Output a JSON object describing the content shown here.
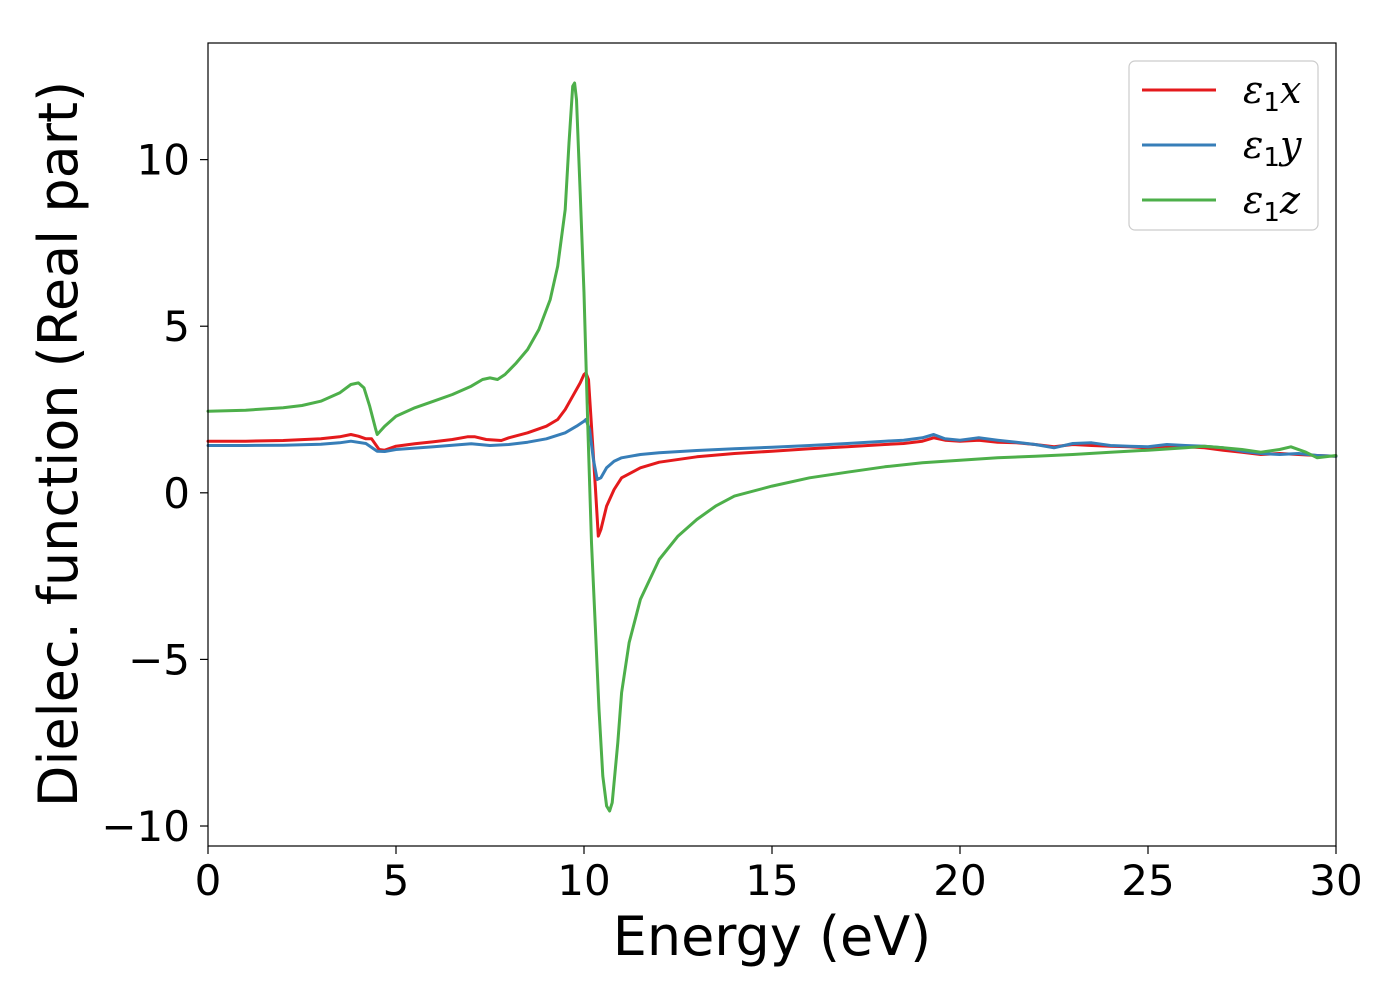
{
  "chart_data": {
    "type": "line",
    "xlabel": "Energy (eV)",
    "ylabel": "Dielec. function (Real part)",
    "xlim": [
      0,
      30
    ],
    "ylim": [
      -10.6,
      13.5
    ],
    "xticks": [
      0,
      5,
      10,
      15,
      20,
      25,
      30
    ],
    "xtick_labels": [
      "0",
      "5",
      "10",
      "15",
      "20",
      "25",
      "30"
    ],
    "yticks": [
      -10,
      -5,
      0,
      5,
      10
    ],
    "ytick_labels": [
      "−10",
      "−5",
      "0",
      "5",
      "10"
    ],
    "grid": false,
    "legend_position": "top-right",
    "series": [
      {
        "name": "ε1x",
        "legend_symbol": "ε",
        "legend_sub": "1",
        "legend_var": "x",
        "color": "#e41a1c",
        "points": [
          [
            0,
            1.55
          ],
          [
            1,
            1.55
          ],
          [
            2,
            1.57
          ],
          [
            3,
            1.62
          ],
          [
            3.5,
            1.68
          ],
          [
            3.8,
            1.75
          ],
          [
            4.0,
            1.7
          ],
          [
            4.2,
            1.62
          ],
          [
            4.35,
            1.62
          ],
          [
            4.55,
            1.3
          ],
          [
            4.7,
            1.28
          ],
          [
            5.0,
            1.4
          ],
          [
            5.5,
            1.47
          ],
          [
            6.0,
            1.53
          ],
          [
            6.5,
            1.6
          ],
          [
            6.9,
            1.68
          ],
          [
            7.1,
            1.68
          ],
          [
            7.4,
            1.6
          ],
          [
            7.8,
            1.57
          ],
          [
            8.0,
            1.65
          ],
          [
            8.5,
            1.8
          ],
          [
            9.0,
            2.0
          ],
          [
            9.3,
            2.2
          ],
          [
            9.5,
            2.5
          ],
          [
            9.7,
            2.9
          ],
          [
            9.9,
            3.3
          ],
          [
            10.0,
            3.55
          ],
          [
            10.05,
            3.6
          ],
          [
            10.12,
            3.4
          ],
          [
            10.2,
            2.0
          ],
          [
            10.3,
            0.2
          ],
          [
            10.38,
            -1.3
          ],
          [
            10.45,
            -1.1
          ],
          [
            10.6,
            -0.4
          ],
          [
            10.8,
            0.1
          ],
          [
            11.0,
            0.45
          ],
          [
            11.5,
            0.75
          ],
          [
            12.0,
            0.92
          ],
          [
            13.0,
            1.08
          ],
          [
            14.0,
            1.18
          ],
          [
            15.0,
            1.25
          ],
          [
            16.0,
            1.32
          ],
          [
            17.0,
            1.38
          ],
          [
            18.0,
            1.45
          ],
          [
            18.5,
            1.48
          ],
          [
            19.0,
            1.55
          ],
          [
            19.3,
            1.65
          ],
          [
            19.6,
            1.58
          ],
          [
            20.0,
            1.55
          ],
          [
            20.5,
            1.58
          ],
          [
            21.0,
            1.52
          ],
          [
            21.5,
            1.5
          ],
          [
            22.0,
            1.45
          ],
          [
            22.5,
            1.38
          ],
          [
            23.0,
            1.45
          ],
          [
            23.5,
            1.42
          ],
          [
            24.0,
            1.4
          ],
          [
            24.5,
            1.38
          ],
          [
            25.0,
            1.35
          ],
          [
            25.5,
            1.4
          ],
          [
            26.0,
            1.38
          ],
          [
            26.5,
            1.35
          ],
          [
            27.0,
            1.28
          ],
          [
            27.5,
            1.22
          ],
          [
            28.0,
            1.15
          ],
          [
            28.5,
            1.18
          ],
          [
            29.0,
            1.15
          ],
          [
            29.5,
            1.12
          ],
          [
            30.0,
            1.1
          ]
        ]
      },
      {
        "name": "ε1y",
        "legend_symbol": "ε",
        "legend_sub": "1",
        "legend_var": "y",
        "color": "#377eb8",
        "points": [
          [
            0,
            1.42
          ],
          [
            1,
            1.42
          ],
          [
            2,
            1.43
          ],
          [
            3,
            1.46
          ],
          [
            3.5,
            1.5
          ],
          [
            3.8,
            1.55
          ],
          [
            4.2,
            1.48
          ],
          [
            4.5,
            1.25
          ],
          [
            4.7,
            1.24
          ],
          [
            5.0,
            1.3
          ],
          [
            6.0,
            1.38
          ],
          [
            7.0,
            1.47
          ],
          [
            7.5,
            1.42
          ],
          [
            8.0,
            1.45
          ],
          [
            8.5,
            1.52
          ],
          [
            9.0,
            1.62
          ],
          [
            9.5,
            1.8
          ],
          [
            9.8,
            2.0
          ],
          [
            10.0,
            2.15
          ],
          [
            10.05,
            2.2
          ],
          [
            10.15,
            1.9
          ],
          [
            10.25,
            1.0
          ],
          [
            10.35,
            0.4
          ],
          [
            10.45,
            0.45
          ],
          [
            10.6,
            0.75
          ],
          [
            10.8,
            0.95
          ],
          [
            11.0,
            1.05
          ],
          [
            11.5,
            1.15
          ],
          [
            12.0,
            1.2
          ],
          [
            13.0,
            1.27
          ],
          [
            14.0,
            1.32
          ],
          [
            15.0,
            1.37
          ],
          [
            16.0,
            1.42
          ],
          [
            17.0,
            1.48
          ],
          [
            18.0,
            1.55
          ],
          [
            18.5,
            1.58
          ],
          [
            19.0,
            1.65
          ],
          [
            19.3,
            1.75
          ],
          [
            19.6,
            1.62
          ],
          [
            20.0,
            1.58
          ],
          [
            20.5,
            1.65
          ],
          [
            21.0,
            1.58
          ],
          [
            21.5,
            1.52
          ],
          [
            22.0,
            1.45
          ],
          [
            22.5,
            1.35
          ],
          [
            23.0,
            1.48
          ],
          [
            23.5,
            1.5
          ],
          [
            24.0,
            1.42
          ],
          [
            24.5,
            1.4
          ],
          [
            25.0,
            1.38
          ],
          [
            25.5,
            1.45
          ],
          [
            26.0,
            1.42
          ],
          [
            26.5,
            1.4
          ],
          [
            27.0,
            1.35
          ],
          [
            27.5,
            1.25
          ],
          [
            28.0,
            1.18
          ],
          [
            28.5,
            1.15
          ],
          [
            29.0,
            1.18
          ],
          [
            29.5,
            1.12
          ],
          [
            30.0,
            1.1
          ]
        ]
      },
      {
        "name": "ε1z",
        "legend_symbol": "ε",
        "legend_sub": "1",
        "legend_var": "z",
        "color": "#4daf4a",
        "points": [
          [
            0,
            2.45
          ],
          [
            1,
            2.48
          ],
          [
            2,
            2.55
          ],
          [
            2.5,
            2.62
          ],
          [
            3.0,
            2.75
          ],
          [
            3.5,
            3.0
          ],
          [
            3.8,
            3.25
          ],
          [
            4.0,
            3.3
          ],
          [
            4.15,
            3.15
          ],
          [
            4.3,
            2.6
          ],
          [
            4.45,
            1.95
          ],
          [
            4.5,
            1.75
          ],
          [
            4.7,
            2.0
          ],
          [
            5.0,
            2.3
          ],
          [
            5.5,
            2.55
          ],
          [
            6.0,
            2.75
          ],
          [
            6.5,
            2.95
          ],
          [
            7.0,
            3.2
          ],
          [
            7.3,
            3.4
          ],
          [
            7.5,
            3.45
          ],
          [
            7.7,
            3.4
          ],
          [
            7.9,
            3.55
          ],
          [
            8.2,
            3.9
          ],
          [
            8.5,
            4.3
          ],
          [
            8.8,
            4.9
          ],
          [
            9.1,
            5.8
          ],
          [
            9.3,
            6.8
          ],
          [
            9.5,
            8.5
          ],
          [
            9.6,
            10.5
          ],
          [
            9.7,
            12.2
          ],
          [
            9.75,
            12.3
          ],
          [
            9.8,
            11.8
          ],
          [
            9.9,
            9.0
          ],
          [
            10.0,
            6.0
          ],
          [
            10.1,
            2.0
          ],
          [
            10.2,
            -1.5
          ],
          [
            10.3,
            -4.0
          ],
          [
            10.4,
            -6.5
          ],
          [
            10.5,
            -8.5
          ],
          [
            10.6,
            -9.4
          ],
          [
            10.68,
            -9.55
          ],
          [
            10.75,
            -9.3
          ],
          [
            10.9,
            -7.5
          ],
          [
            11.0,
            -6.0
          ],
          [
            11.2,
            -4.5
          ],
          [
            11.5,
            -3.2
          ],
          [
            12.0,
            -2.0
          ],
          [
            12.5,
            -1.3
          ],
          [
            13.0,
            -0.8
          ],
          [
            13.5,
            -0.4
          ],
          [
            14.0,
            -0.1
          ],
          [
            15.0,
            0.2
          ],
          [
            16.0,
            0.45
          ],
          [
            17.0,
            0.62
          ],
          [
            18.0,
            0.78
          ],
          [
            19.0,
            0.9
          ],
          [
            20.0,
            0.98
          ],
          [
            21.0,
            1.05
          ],
          [
            22.0,
            1.1
          ],
          [
            23.0,
            1.15
          ],
          [
            24.0,
            1.22
          ],
          [
            25.0,
            1.28
          ],
          [
            26.0,
            1.35
          ],
          [
            26.5,
            1.4
          ],
          [
            27.0,
            1.35
          ],
          [
            27.5,
            1.3
          ],
          [
            28.0,
            1.22
          ],
          [
            28.5,
            1.3
          ],
          [
            28.8,
            1.38
          ],
          [
            29.2,
            1.22
          ],
          [
            29.5,
            1.05
          ],
          [
            30.0,
            1.12
          ]
        ]
      }
    ]
  }
}
